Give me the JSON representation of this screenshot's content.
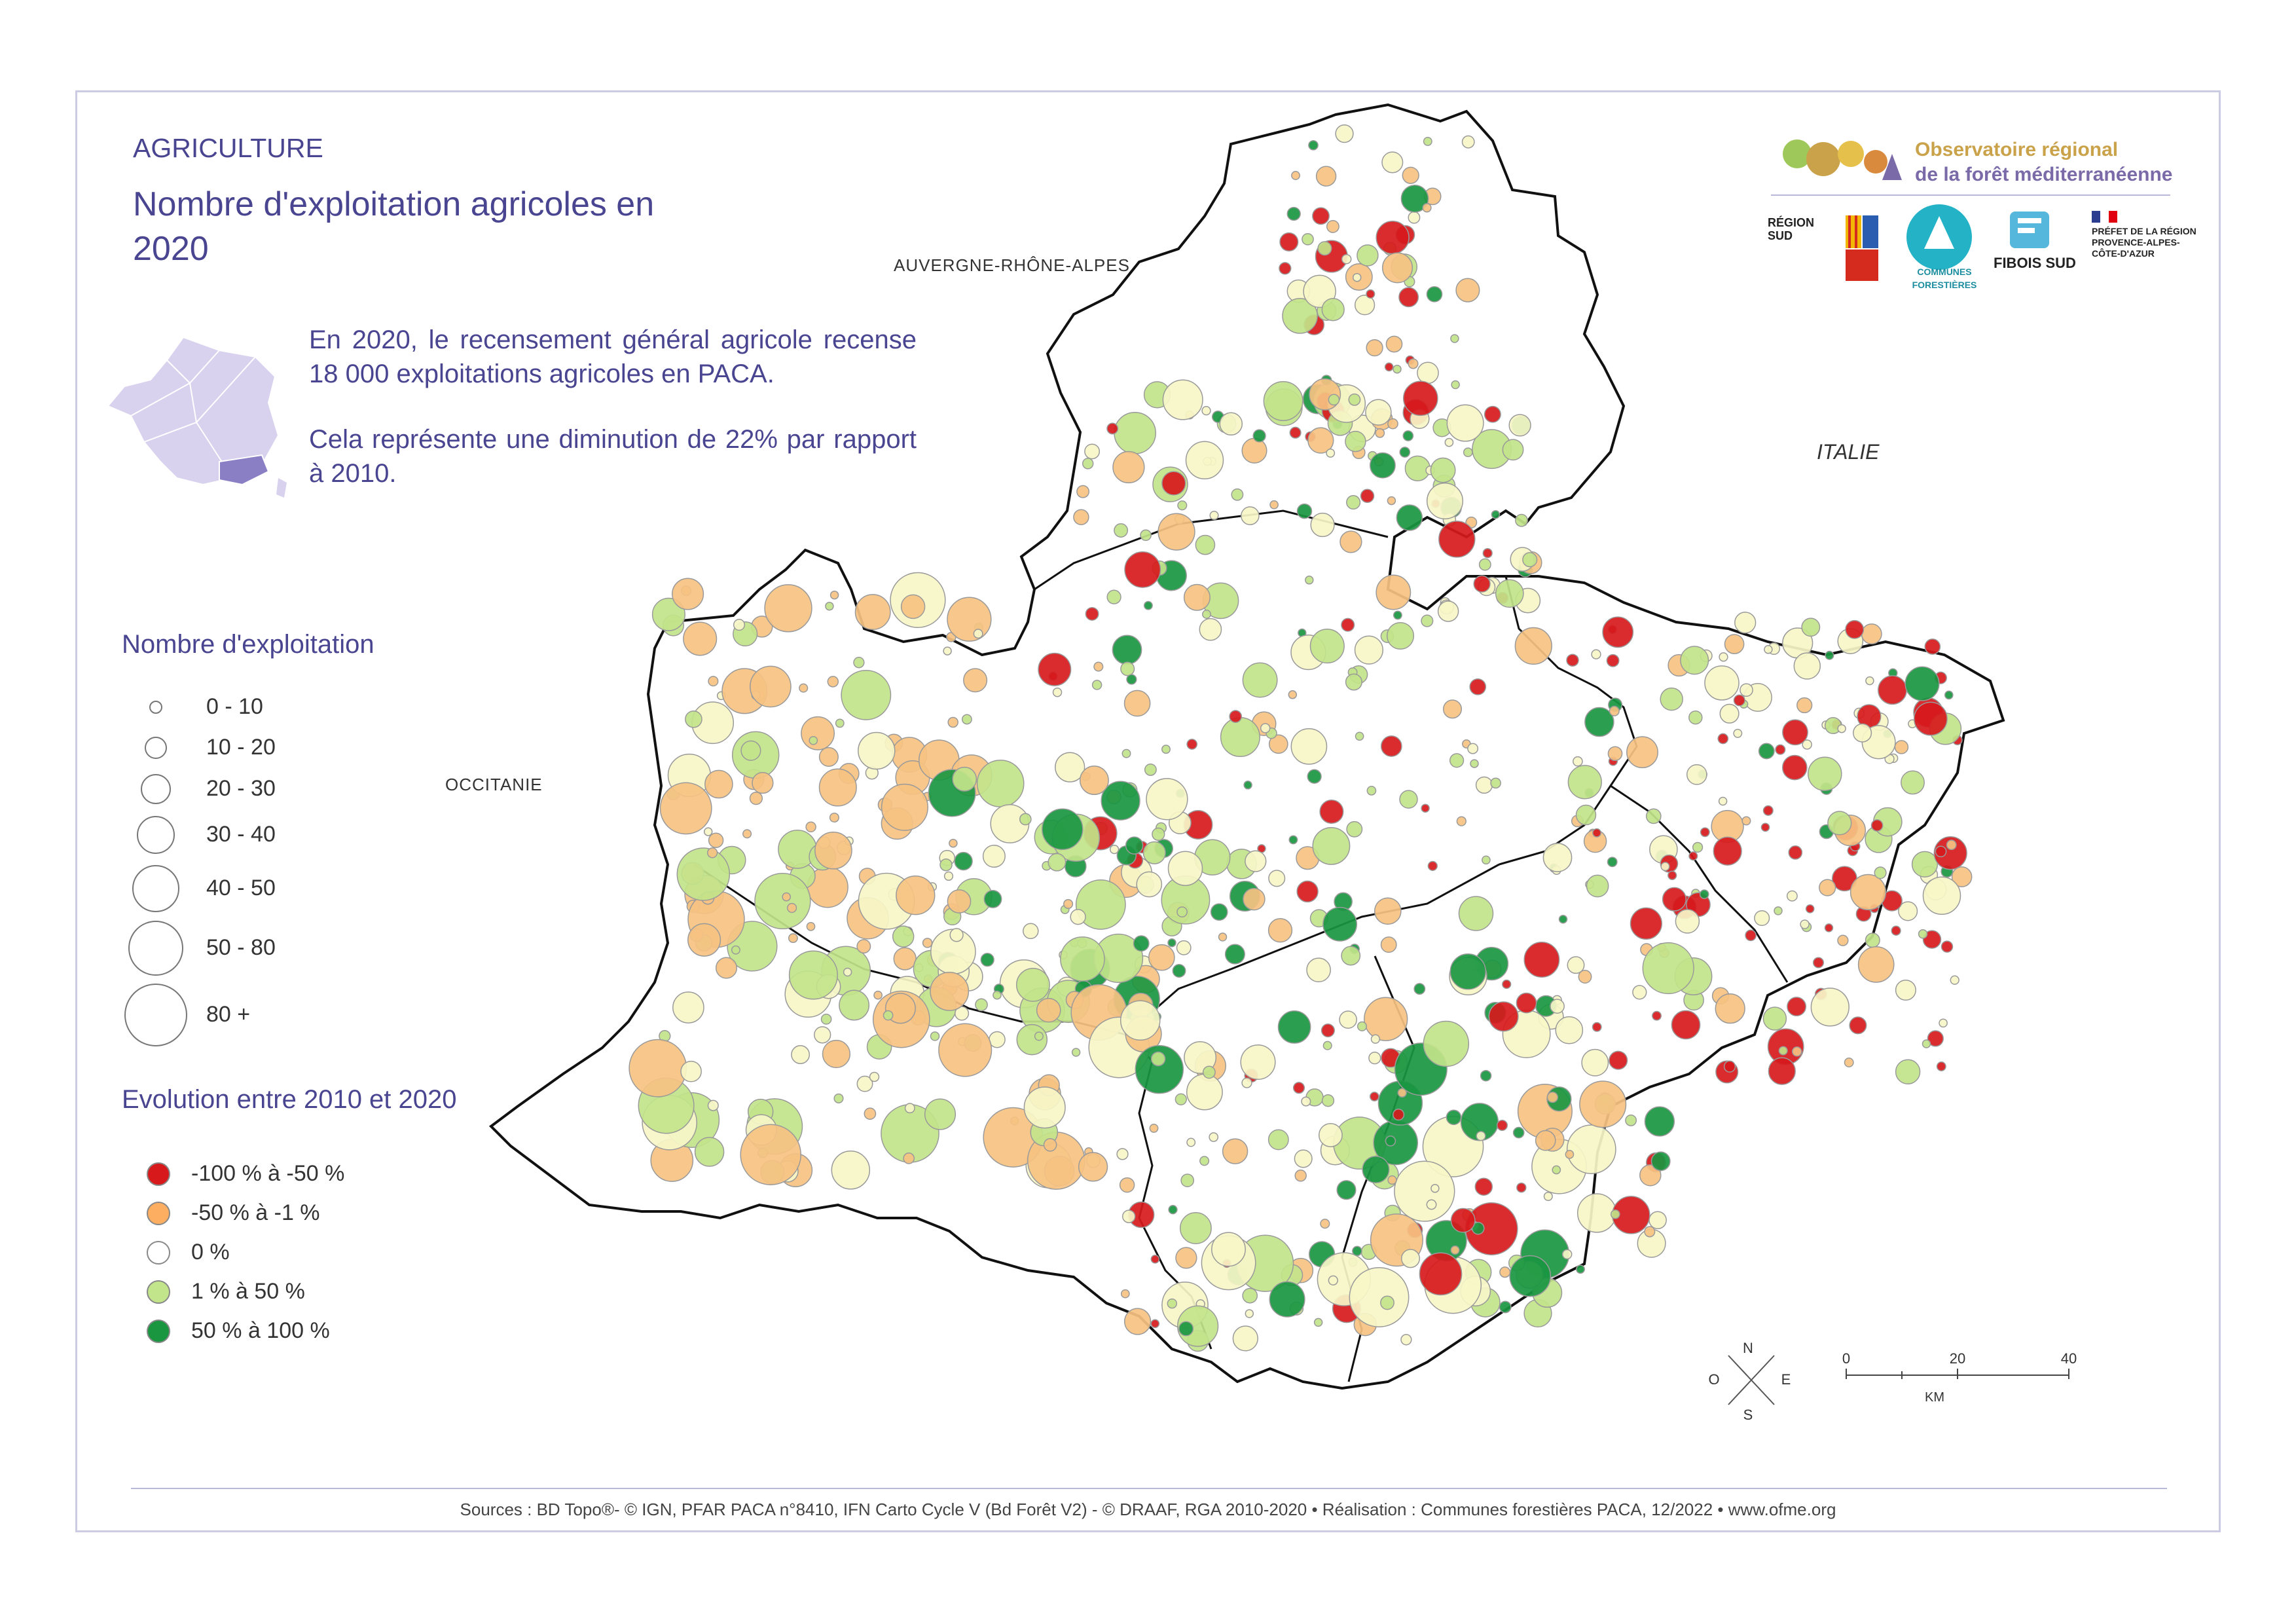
{
  "header": {
    "category": "AGRICULTURE",
    "title": "Nombre d'exploitation agricoles en 2020"
  },
  "intro": {
    "p1": "En 2020, le recensement général agricole recense 18 000 exploitations agricoles en PACA.",
    "p2": "Cela représente une diminution de 22% par rapport à 2010."
  },
  "neighbors": {
    "north": "AUVERGNE-RHÔNE-ALPES",
    "west": "OCCITANIE",
    "east": "ITALIE"
  },
  "legend_size": {
    "title": "Nombre d'exploitation",
    "classes": [
      "0 - 10",
      "10 - 20",
      "20 - 30",
      "30 - 40",
      "40 - 50",
      "50 - 80",
      "80 +"
    ]
  },
  "legend_evolution": {
    "title": "Evolution entre 2010 et 2020",
    "classes": [
      {
        "label": "-100 % à  -50 %",
        "color": "#d7191c"
      },
      {
        "label": "-50 % à -1 %",
        "color": "#fdae61"
      },
      {
        "label": "0 %",
        "color": "#ffffff"
      },
      {
        "label": "1 % à 50 %",
        "color": "#c2e48a"
      },
      {
        "label": "50 % à 100 %",
        "color": "#1a9641"
      }
    ]
  },
  "scale": {
    "ticks": [
      "0",
      "20",
      "40"
    ],
    "unit": "KM"
  },
  "compass": {
    "n": "N",
    "s": "S",
    "e": "E",
    "o": "O"
  },
  "logos": {
    "obs_line1": "Observatoire régional",
    "obs_line2": "de la forêt méditerranéenne",
    "region": "RÉGION SUD",
    "communes": "COMMUNES FORESTIÈRES",
    "fibois": "FIBOIS SUD",
    "prefet": "PRÉFET DE LA RÉGION PROVENCE-ALPES-CÔTE-D'AZUR"
  },
  "footer": {
    "sources": "Sources : BD Topo®- © IGN, PFAR PACA n°8410, IFN Carto Cycle V (Bd Forêt V2) - © DRAAF, RGA 2010-2020  • Réalisation : Communes forestières PACA, 12/2022 • www.ofme.org"
  }
}
